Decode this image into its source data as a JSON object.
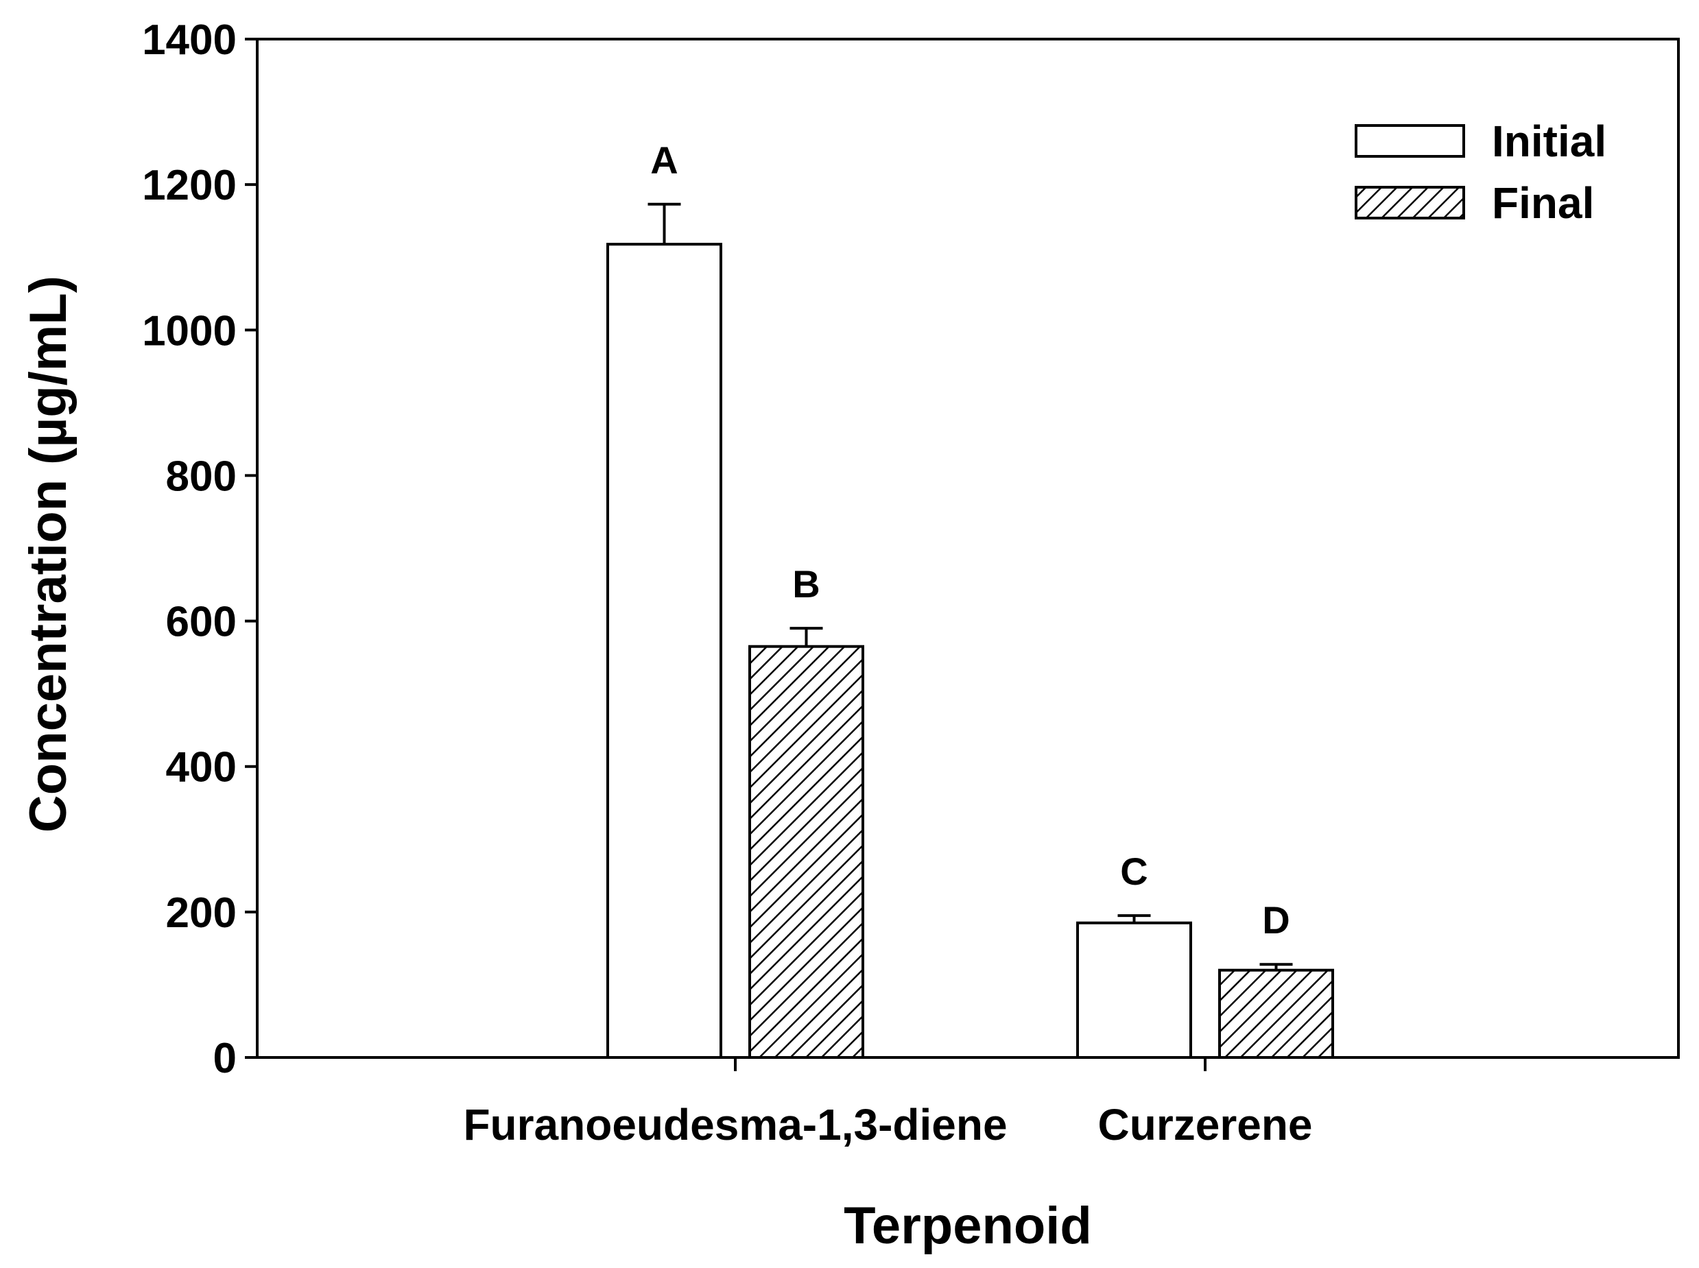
{
  "chart_data": {
    "type": "bar",
    "title": "",
    "xlabel": "Terpenoid",
    "ylabel": "Concentration (µg/mL)",
    "ylim": [
      0,
      1400
    ],
    "yticks": [
      "0",
      "200",
      "400",
      "600",
      "800",
      "1000",
      "1200",
      "1400"
    ],
    "categories": [
      "Furanoeudesma-1,3-diene",
      "Curzerene"
    ],
    "series": [
      {
        "name": "Initial",
        "pattern": "none",
        "fill": "#ffffff",
        "values": [
          1118,
          185
        ],
        "errors": [
          55,
          10
        ],
        "labels": [
          "A",
          "C"
        ]
      },
      {
        "name": "Final",
        "pattern": "diagonal-hatch",
        "fill": "#ffffff",
        "values": [
          565,
          120
        ],
        "errors": [
          25,
          8
        ],
        "labels": [
          "B",
          "D"
        ]
      }
    ],
    "legend_position": "top-right",
    "grid": false,
    "stroke_color": "#000000"
  }
}
